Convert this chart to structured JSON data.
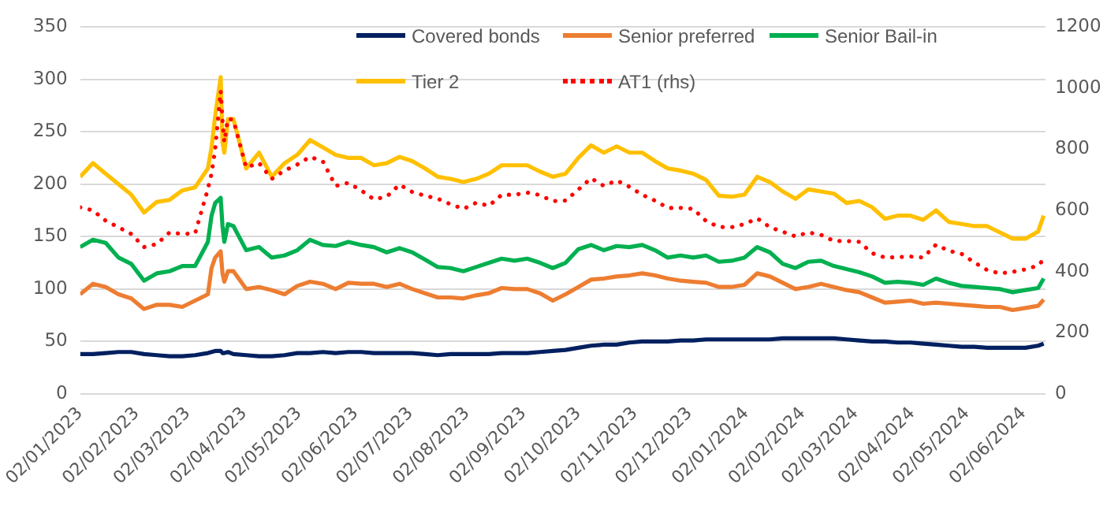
{
  "chart_data": {
    "type": "line",
    "x": [
      "2023-01-02",
      "2023-01-09",
      "2023-01-16",
      "2023-01-23",
      "2023-01-30",
      "2023-02-06",
      "2023-02-13",
      "2023-02-20",
      "2023-02-27",
      "2023-03-06",
      "2023-03-13",
      "2023-03-15",
      "2023-03-17",
      "2023-03-20",
      "2023-03-21",
      "2023-03-22",
      "2023-03-24",
      "2023-03-27",
      "2023-04-03",
      "2023-04-10",
      "2023-04-17",
      "2023-04-24",
      "2023-05-01",
      "2023-05-08",
      "2023-05-15",
      "2023-05-22",
      "2023-05-29",
      "2023-06-05",
      "2023-06-12",
      "2023-06-19",
      "2023-06-26",
      "2023-07-03",
      "2023-07-10",
      "2023-07-17",
      "2023-07-24",
      "2023-07-31",
      "2023-08-07",
      "2023-08-14",
      "2023-08-21",
      "2023-08-28",
      "2023-09-04",
      "2023-09-11",
      "2023-09-18",
      "2023-09-25",
      "2023-10-02",
      "2023-10-09",
      "2023-10-16",
      "2023-10-23",
      "2023-10-30",
      "2023-11-06",
      "2023-11-13",
      "2023-11-20",
      "2023-11-27",
      "2023-12-04",
      "2023-12-11",
      "2023-12-18",
      "2023-12-25",
      "2024-01-01",
      "2024-01-08",
      "2024-01-15",
      "2024-01-22",
      "2024-01-29",
      "2024-02-05",
      "2024-02-12",
      "2024-02-19",
      "2024-02-26",
      "2024-03-04",
      "2024-03-11",
      "2024-03-18",
      "2024-03-25",
      "2024-04-01",
      "2024-04-08",
      "2024-04-15",
      "2024-04-22",
      "2024-04-29",
      "2024-05-06",
      "2024-05-13",
      "2024-05-20",
      "2024-05-27",
      "2024-06-03",
      "2024-06-10",
      "2024-06-13"
    ],
    "series": [
      {
        "name": "Covered bonds",
        "color": "#002060",
        "values": [
          38,
          38,
          39,
          40,
          40,
          38,
          37,
          36,
          36,
          37,
          39,
          40,
          41,
          41,
          39,
          39,
          40,
          38,
          37,
          36,
          36,
          37,
          39,
          39,
          40,
          39,
          40,
          40,
          39,
          39,
          39,
          39,
          38,
          37,
          38,
          38,
          38,
          38,
          39,
          39,
          39,
          40,
          41,
          42,
          44,
          46,
          47,
          47,
          49,
          50,
          50,
          50,
          51,
          51,
          52,
          52,
          52,
          52,
          52,
          52,
          53,
          53,
          53,
          53,
          53,
          52,
          51,
          50,
          50,
          49,
          49,
          48,
          47,
          46,
          45,
          45,
          44,
          44,
          44,
          44,
          46,
          48
        ]
      },
      {
        "name": "Senior preferred",
        "color": "#ed7d31",
        "values": [
          95,
          105,
          102,
          95,
          91,
          81,
          85,
          85,
          83,
          89,
          95,
          120,
          130,
          136,
          115,
          107,
          117,
          117,
          100,
          102,
          99,
          95,
          103,
          107,
          105,
          100,
          106,
          105,
          105,
          102,
          105,
          100,
          96,
          92,
          92,
          91,
          94,
          96,
          101,
          100,
          100,
          96,
          89,
          95,
          102,
          109,
          110,
          112,
          113,
          115,
          113,
          110,
          108,
          107,
          106,
          102,
          102,
          104,
          115,
          112,
          106,
          100,
          102,
          105,
          102,
          99,
          97,
          92,
          87,
          88,
          89,
          86,
          87,
          86,
          85,
          84,
          83,
          83,
          80,
          82,
          84,
          90
        ]
      },
      {
        "name": "Senior Bail-in",
        "color": "#00b050",
        "values": [
          140,
          147,
          144,
          130,
          124,
          108,
          115,
          117,
          122,
          122,
          145,
          170,
          182,
          187,
          160,
          145,
          162,
          160,
          137,
          140,
          130,
          132,
          137,
          147,
          142,
          141,
          145,
          142,
          140,
          135,
          139,
          135,
          128,
          121,
          120,
          117,
          121,
          125,
          129,
          127,
          129,
          125,
          120,
          125,
          138,
          142,
          137,
          141,
          140,
          142,
          137,
          130,
          132,
          130,
          132,
          126,
          127,
          130,
          140,
          135,
          124,
          120,
          126,
          127,
          122,
          119,
          116,
          112,
          106,
          107,
          106,
          104,
          110,
          106,
          103,
          102,
          101,
          100,
          97,
          99,
          101,
          110
        ]
      },
      {
        "name": "Tier 2",
        "color": "#ffc000",
        "values": [
          207,
          220,
          210,
          200,
          190,
          173,
          183,
          185,
          194,
          197,
          215,
          235,
          265,
          302,
          240,
          230,
          262,
          262,
          215,
          230,
          207,
          220,
          228,
          242,
          235,
          228,
          225,
          225,
          218,
          220,
          226,
          222,
          215,
          207,
          205,
          202,
          205,
          210,
          218,
          218,
          218,
          212,
          207,
          210,
          225,
          237,
          230,
          236,
          230,
          230,
          222,
          215,
          213,
          210,
          204,
          189,
          188,
          190,
          207,
          202,
          193,
          186,
          195,
          193,
          191,
          182,
          184,
          178,
          167,
          170,
          170,
          166,
          175,
          164,
          162,
          160,
          160,
          154,
          148,
          148,
          155,
          170
        ]
      },
      {
        "name": "AT1 (rhs)",
        "color": "#ff0000",
        "axis": "y2",
        "line_style": "dotted",
        "values": [
          610,
          600,
          566,
          545,
          523,
          480,
          490,
          528,
          523,
          525,
          670,
          720,
          800,
          990,
          891,
          823,
          900,
          895,
          740,
          755,
          703,
          730,
          750,
          775,
          760,
          680,
          690,
          665,
          636,
          645,
          684,
          660,
          648,
          638,
          620,
          605,
          625,
          615,
          651,
          651,
          658,
          650,
          630,
          632,
          668,
          705,
          680,
          698,
          677,
          651,
          632,
          608,
          608,
          605,
          565,
          546,
          545,
          555,
          574,
          545,
          530,
          515,
          528,
          520,
          500,
          500,
          497,
          460,
          446,
          447,
          449,
          446,
          488,
          468,
          458,
          430,
          405,
          394,
          399,
          407,
          420,
          440
        ]
      }
    ],
    "xlim": [
      "2023-01-02",
      "2024-06-14"
    ],
    "xticks": [
      {
        "value": "2023-01-02",
        "label": "02/01/2023"
      },
      {
        "value": "2023-02-02",
        "label": "02/02/2023"
      },
      {
        "value": "2023-03-02",
        "label": "02/03/2023"
      },
      {
        "value": "2023-04-02",
        "label": "02/04/2023"
      },
      {
        "value": "2023-05-02",
        "label": "02/05/2023"
      },
      {
        "value": "2023-06-02",
        "label": "02/06/2023"
      },
      {
        "value": "2023-07-02",
        "label": "02/07/2023"
      },
      {
        "value": "2023-08-02",
        "label": "02/08/2023"
      },
      {
        "value": "2023-09-02",
        "label": "02/09/2023"
      },
      {
        "value": "2023-10-02",
        "label": "02/10/2023"
      },
      {
        "value": "2023-11-02",
        "label": "02/11/2023"
      },
      {
        "value": "2023-12-02",
        "label": "02/12/2023"
      },
      {
        "value": "2024-01-02",
        "label": "02/01/2024"
      },
      {
        "value": "2024-02-02",
        "label": "02/02/2024"
      },
      {
        "value": "2024-03-02",
        "label": "02/03/2024"
      },
      {
        "value": "2024-04-02",
        "label": "02/04/2024"
      },
      {
        "value": "2024-05-02",
        "label": "02/05/2024"
      },
      {
        "value": "2024-06-02",
        "label": "02/06/2024"
      }
    ],
    "ylim": [
      0,
      350
    ],
    "yticks": [
      0,
      50,
      100,
      150,
      200,
      250,
      300,
      350
    ],
    "y2lim": [
      0,
      1200
    ],
    "y2ticks": [
      0,
      200,
      400,
      600,
      800,
      1000,
      1200
    ],
    "grid": "y",
    "legend": "top",
    "marker": "none",
    "line_style": "solid"
  }
}
